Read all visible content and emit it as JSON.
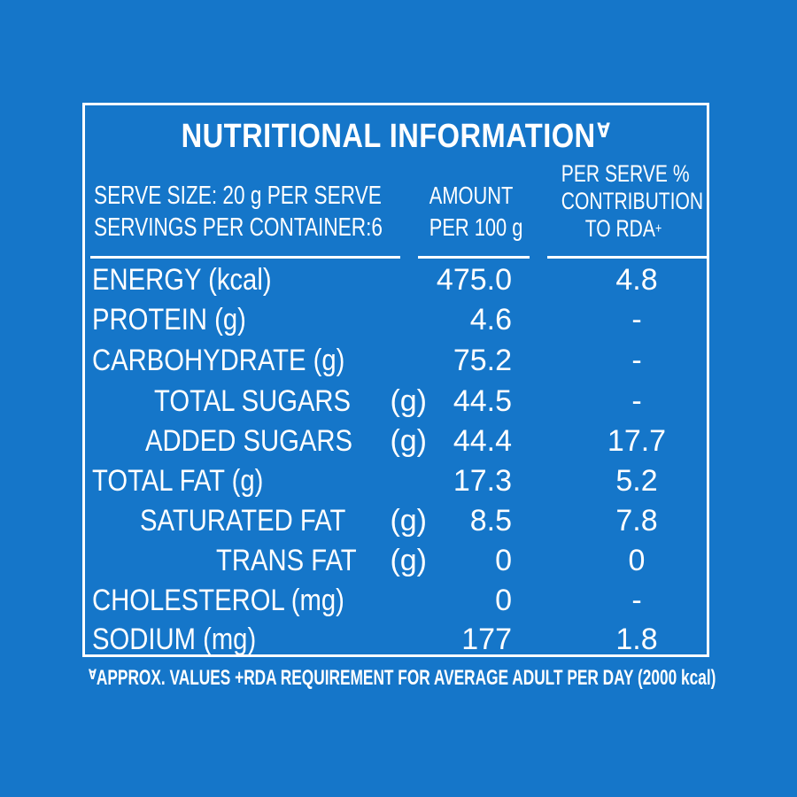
{
  "label": {
    "title": "NUTRITIONAL INFORMATION",
    "title_mark": "Ɐ",
    "serve_size": "SERVE SIZE: 20 g PER SERVE",
    "servings": "SERVINGS PER CONTAINER:6",
    "amount_header_1": "AMOUNT",
    "amount_header_2": "PER 100 g",
    "rda_header_1": "PER SERVE %",
    "rda_header_2": "CONTRIBUTION",
    "rda_header_3": "TO RDA",
    "rda_mark": "+",
    "rows": [
      {
        "name": "ENERGY (kcal)",
        "amount": "475.0",
        "rda": "4.8"
      },
      {
        "name": "PROTEIN (g)",
        "amount": "4.6",
        "rda": "-"
      },
      {
        "name": "CARBOHYDRATE (g)",
        "amount": "75.2",
        "rda": "-"
      },
      {
        "name": "TOTAL SUGARS",
        "unit": "(g)",
        "amount": "44.5",
        "rda": "-"
      },
      {
        "name": "ADDED SUGARS",
        "unit": "(g)",
        "amount": "44.4",
        "rda": "17.7"
      },
      {
        "name": "TOTAL FAT (g)",
        "amount": "17.3",
        "rda": "5.2"
      },
      {
        "name": "SATURATED FAT",
        "unit": "(g)",
        "amount": "8.5",
        "rda": "7.8"
      },
      {
        "name": "TRANS FAT",
        "unit": "(g)",
        "amount": "0",
        "rda": "0"
      },
      {
        "name": "CHOLESTEROL (mg)",
        "amount": "0",
        "rda": "-"
      },
      {
        "name": "SODIUM (mg)",
        "amount": "177",
        "rda": "1.8"
      }
    ],
    "footnote": "APPROX. VALUES +RDA REQUIREMENT FOR AVERAGE ADULT PER DAY (2000 kcal)",
    "footnote_mark": "Ɐ"
  },
  "colors": {
    "background": "#1576c9",
    "text": "#ffffff"
  }
}
